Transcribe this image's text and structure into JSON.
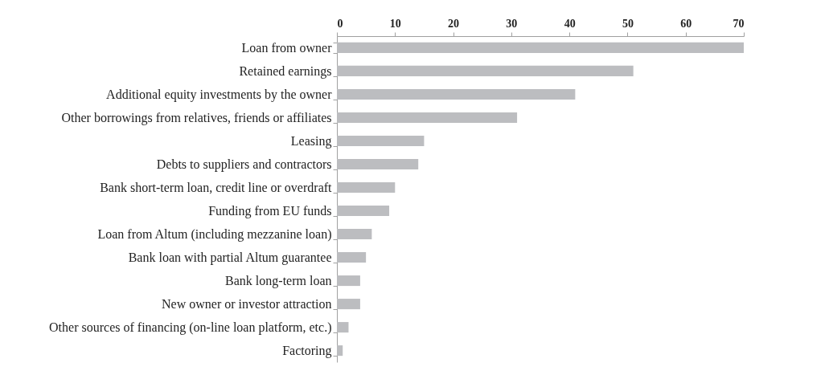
{
  "chart_data": {
    "type": "bar",
    "orientation": "horizontal",
    "categories": [
      "Loan from owner",
      "Retained earnings",
      "Additional equity investments by the owner",
      "Other borrowings from relatives, friends or affiliates",
      "Leasing",
      "Debts to suppliers and contractors",
      "Bank short-term loan, credit line or overdraft ",
      "Funding from EU funds",
      "Loan from Altum (including mezzanine loan)",
      "Bank loan with partial Altum guarantee",
      "Bank long-term loan",
      "New owner or investor attraction",
      "Other sources of financing (on-line loan platform, etc.)",
      "Factoring"
    ],
    "values": [
      70,
      51,
      41,
      31,
      15,
      14,
      10,
      9,
      6,
      5,
      4,
      4,
      2,
      1
    ],
    "color": "#bcbdc0",
    "xlim": [
      0,
      70
    ],
    "xticks": [
      0,
      10,
      20,
      30,
      40,
      50,
      60,
      70
    ],
    "grid": false
  }
}
